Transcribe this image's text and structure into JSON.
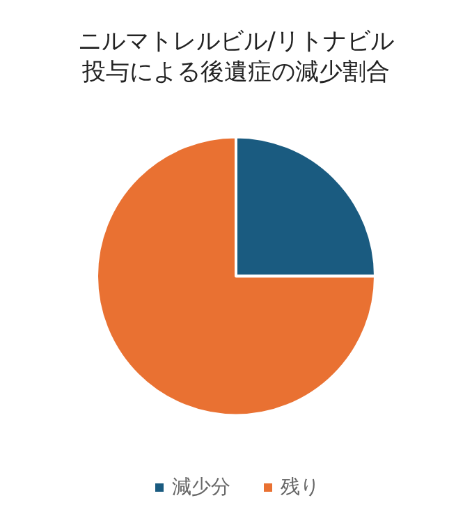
{
  "chart_data": {
    "type": "pie",
    "title": "ニルマトレルビル/リトナビル投与による後遺症の減少割合",
    "categories": [
      "減少分",
      "残り"
    ],
    "values": [
      25,
      75
    ],
    "colors": [
      "#1a5b80",
      "#e97132"
    ],
    "legend": "bottom"
  }
}
